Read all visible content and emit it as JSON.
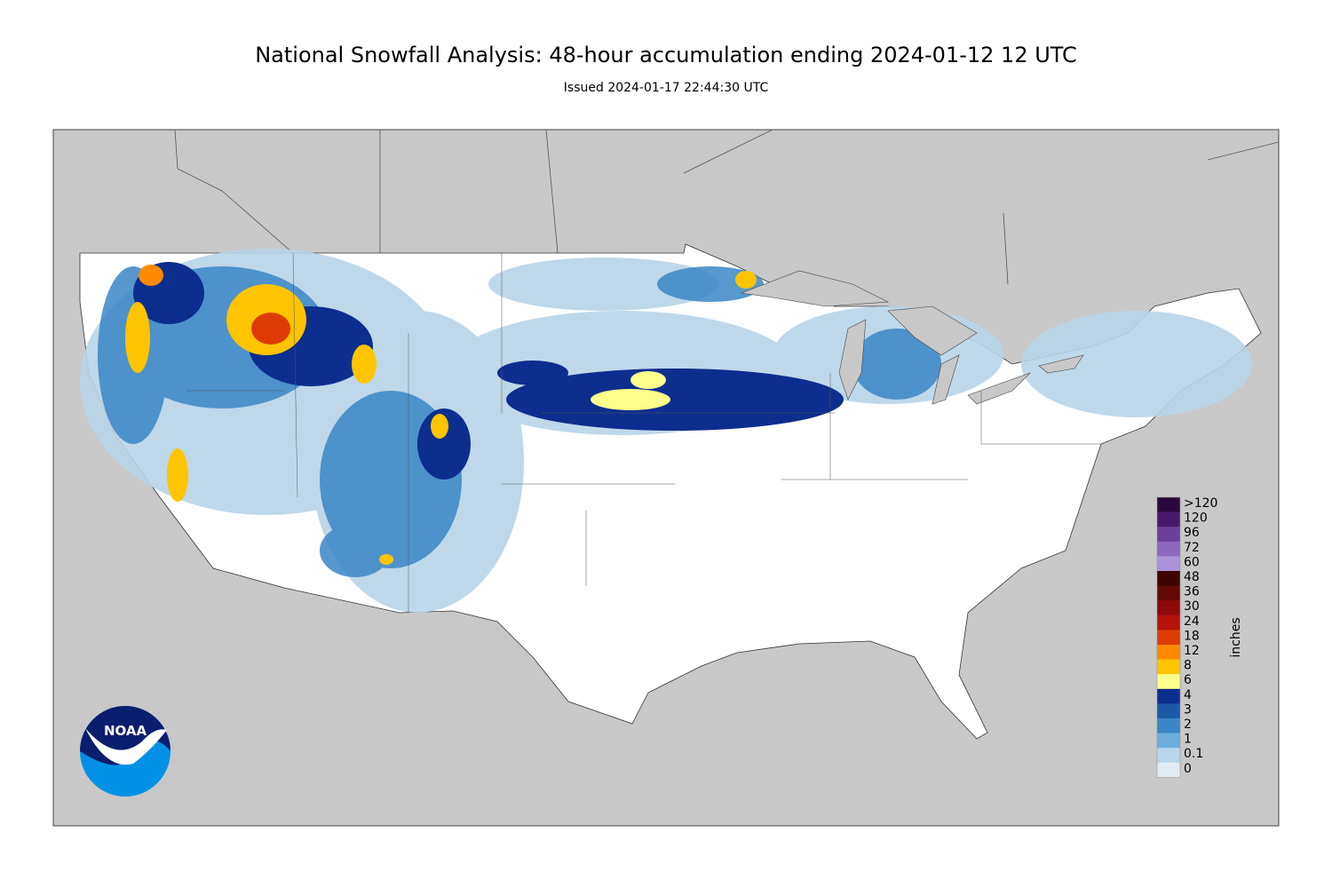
{
  "header": {
    "title": "National Snowfall Analysis: 48-hour accumulation ending 2024-01-12 12 UTC",
    "subtitle": "Issued 2024-01-17 22:44:30 UTC"
  },
  "legend": {
    "unit": "inches",
    "items": [
      {
        "label": ">120",
        "color": "#2a0a3c"
      },
      {
        "label": "120",
        "color": "#4a1a6c"
      },
      {
        "label": "96",
        "color": "#6b3f9c"
      },
      {
        "label": "72",
        "color": "#8c68c0"
      },
      {
        "label": "60",
        "color": "#ab93da"
      },
      {
        "label": "48",
        "color": "#3e0404"
      },
      {
        "label": "36",
        "color": "#640808"
      },
      {
        "label": "30",
        "color": "#8e0a0a"
      },
      {
        "label": "24",
        "color": "#b81208"
      },
      {
        "label": "18",
        "color": "#e03a04"
      },
      {
        "label": "12",
        "color": "#ff8a00"
      },
      {
        "label": "8",
        "color": "#ffc400"
      },
      {
        "label": "6",
        "color": "#ffff8c"
      },
      {
        "label": "4",
        "color": "#0c2e8e"
      },
      {
        "label": "3",
        "color": "#1a5aa8"
      },
      {
        "label": "2",
        "color": "#3a86c6"
      },
      {
        "label": "1",
        "color": "#6caedc"
      },
      {
        "label": "0.1",
        "color": "#b8d4e8"
      },
      {
        "label": "0",
        "color": "#e2ebf4"
      }
    ]
  },
  "logo": {
    "text": "NOAA"
  }
}
